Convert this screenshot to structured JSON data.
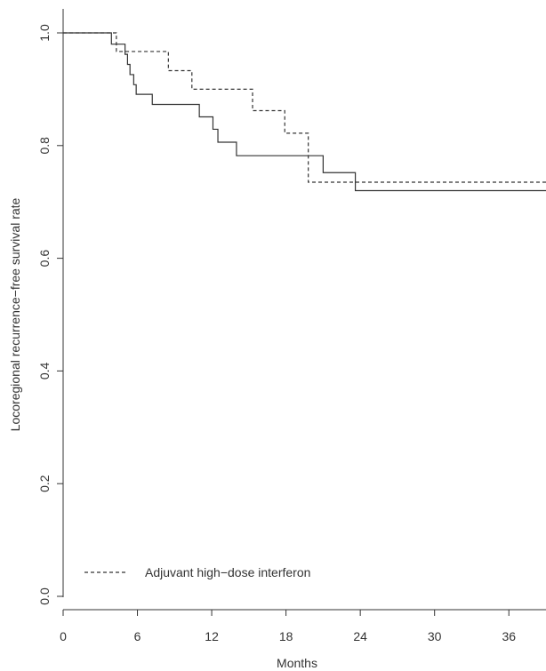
{
  "chart_data": {
    "type": "line",
    "title": "",
    "xlabel": "Months",
    "ylabel": "Locoregional recurrence−free survival rate",
    "xlim": [
      0,
      39
    ],
    "ylim": [
      0.0,
      1.0
    ],
    "x_ticks": [
      0,
      6,
      12,
      18,
      24,
      30,
      36
    ],
    "x_tick_labels": [
      "0",
      "6",
      "12",
      "18",
      "24",
      "30",
      "36"
    ],
    "y_ticks": [
      0.0,
      0.2,
      0.4,
      0.6,
      0.8,
      1.0
    ],
    "y_tick_labels": [
      "0.0",
      "0.2",
      "0.4",
      "0.6",
      "0.8",
      "1.0"
    ],
    "grid": false,
    "legend_position": "bottom-left",
    "series": [
      {
        "name": "Adjuvant high−dose interferon",
        "line_style": "dashed",
        "color": "#333333",
        "step_points": [
          [
            0,
            1.0
          ],
          [
            4.3,
            0.967
          ],
          [
            8.5,
            0.933
          ],
          [
            10.4,
            0.9
          ],
          [
            15.3,
            0.862
          ],
          [
            17.9,
            0.822
          ],
          [
            19.8,
            0.735
          ],
          [
            39,
            0.735
          ]
        ]
      },
      {
        "line_style": "solid",
        "color": "#333333",
        "step_points": [
          [
            0,
            1.0
          ],
          [
            3.9,
            0.98
          ],
          [
            5.0,
            0.962
          ],
          [
            5.2,
            0.944
          ],
          [
            5.4,
            0.926
          ],
          [
            5.7,
            0.908
          ],
          [
            5.9,
            0.891
          ],
          [
            7.2,
            0.873
          ],
          [
            11.0,
            0.851
          ],
          [
            12.1,
            0.829
          ],
          [
            12.5,
            0.806
          ],
          [
            14.0,
            0.782
          ],
          [
            21.0,
            0.752
          ],
          [
            23.6,
            0.72
          ],
          [
            39,
            0.72
          ]
        ]
      }
    ]
  }
}
